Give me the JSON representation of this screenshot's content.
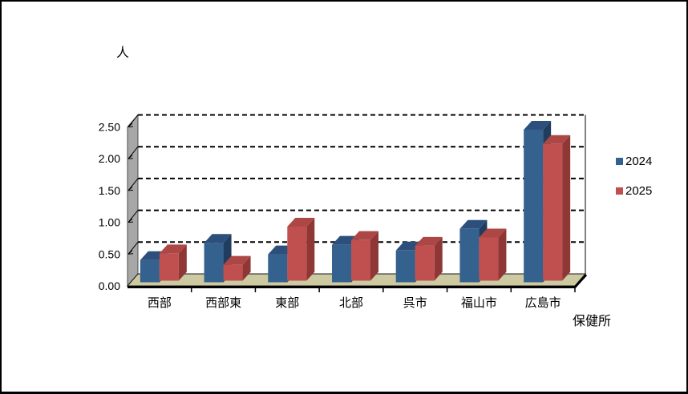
{
  "chart_data": {
    "type": "bar",
    "style": "3d-clustered-column",
    "title": "人",
    "xlabel": "保健所",
    "ylabel": "",
    "categories": [
      "西部",
      "西部東",
      "東部",
      "北部",
      "呉市",
      "福山市",
      "広島市"
    ],
    "series": [
      {
        "name": "2024",
        "values": [
          0.35,
          0.62,
          0.44,
          0.59,
          0.5,
          0.84,
          2.4
        ],
        "color_front": "#35618F",
        "color_top": "#2C4F7C",
        "color_side": "#203C5E"
      },
      {
        "name": "2025",
        "values": [
          0.43,
          0.25,
          0.85,
          0.64,
          0.55,
          0.68,
          2.15
        ],
        "color_front": "#C05050",
        "color_top": "#AD4745",
        "color_side": "#8E3734"
      }
    ],
    "ylim": [
      0,
      2.5
    ],
    "ytick_step": 0.5,
    "ytick_labels": [
      "0.00",
      "0.50",
      "1.00",
      "1.50",
      "2.00",
      "2.50"
    ],
    "grid": "dashed-horizontal",
    "legend_position": "right",
    "colors": {
      "wall": "#A7A7A7",
      "wall_edge": "#4D4D4D",
      "floor": "#CDC9A1",
      "floor_edge": "#1A1A1A",
      "grid": "#000000",
      "axis": "#000000",
      "text": "#000000",
      "background": "#FFFFFF"
    }
  }
}
